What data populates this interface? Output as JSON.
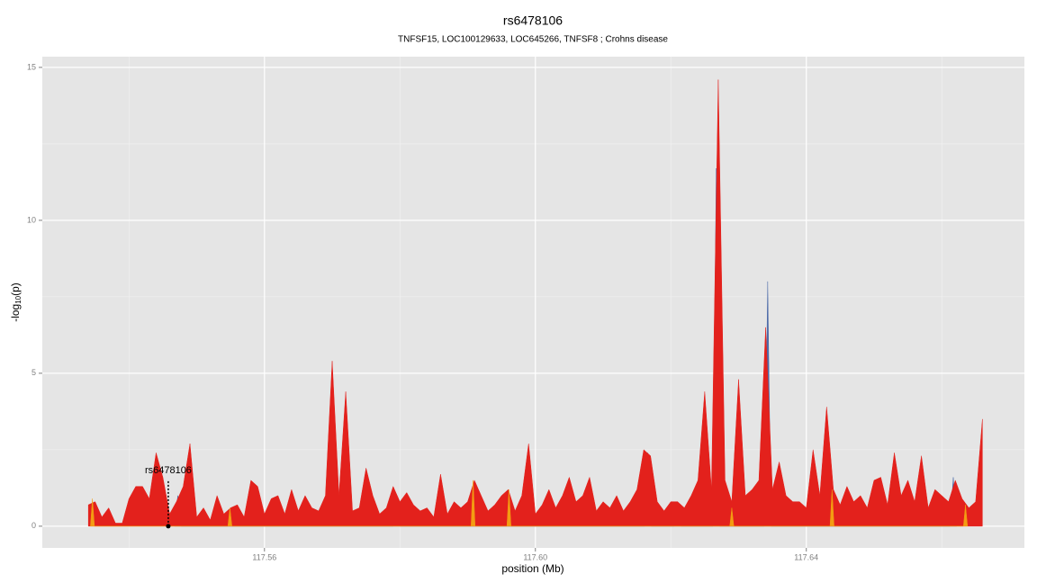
{
  "chart_data": {
    "type": "area",
    "title": "rs6478106",
    "subtitle": "TNFSF15, LOC100129633, LOC645266, TNFSF8 ; Crohns disease",
    "x_label": "position (Mb)",
    "y_label": {
      "main": "-log",
      "sub": "10",
      "tail": "(p)"
    },
    "xlim": [
      117.5272,
      117.6722
    ],
    "ylim": [
      -0.71,
      15.35
    ],
    "xticks": [
      117.56,
      {
        "value": 117.6,
        "label": "117.60"
      },
      117.64
    ],
    "yticks": [
      0,
      5,
      10,
      15
    ],
    "x_minor_grid": [
      117.54,
      117.58,
      117.62,
      117.66
    ],
    "y_minor_grid": [
      2.5,
      7.5,
      12.5
    ],
    "grid": true,
    "background": "#e5e5e5",
    "annotation": {
      "label": "rs6478106",
      "x": 117.5458,
      "y": 0
    },
    "series": [
      {
        "color": "#4c6aa8",
        "x": [
          117.5467,
          117.5472,
          117.5477,
          117.579,
          117.5795,
          117.58,
          117.6161,
          117.6166,
          117.6171,
          117.6205,
          117.621,
          117.6215,
          117.6262,
          117.6267,
          117.6272,
          117.6338,
          117.6343,
          117.6348,
          117.6612,
          117.6617,
          117.6622
        ],
        "values": [
          0,
          1.0,
          0,
          0,
          0.6,
          0,
          0,
          2.4,
          0,
          0,
          0.8,
          0,
          0,
          11.7,
          0,
          0,
          8.0,
          0,
          0,
          1.6,
          0
        ]
      },
      {
        "color": "#e3211c",
        "x": [
          117.534,
          117.535,
          117.536,
          117.537,
          117.538,
          117.539,
          117.54,
          117.541,
          117.542,
          117.543,
          117.544,
          117.545,
          117.546,
          117.547,
          117.548,
          117.549,
          117.55,
          117.551,
          117.552,
          117.553,
          117.554,
          117.555,
          117.556,
          117.557,
          117.558,
          117.559,
          117.56,
          117.561,
          117.562,
          117.563,
          117.564,
          117.565,
          117.566,
          117.567,
          117.568,
          117.569,
          117.57,
          117.571,
          117.572,
          117.573,
          117.574,
          117.575,
          117.576,
          117.577,
          117.578,
          117.579,
          117.58,
          117.581,
          117.582,
          117.583,
          117.584,
          117.585,
          117.586,
          117.587,
          117.588,
          117.589,
          117.59,
          117.591,
          117.592,
          117.593,
          117.594,
          117.595,
          117.596,
          117.597,
          117.598,
          117.599,
          117.6,
          117.601,
          117.602,
          117.603,
          117.604,
          117.605,
          117.606,
          117.607,
          117.608,
          117.609,
          117.61,
          117.611,
          117.612,
          117.613,
          117.614,
          117.615,
          117.616,
          117.617,
          117.618,
          117.619,
          117.62,
          117.621,
          117.622,
          117.623,
          117.624,
          117.625,
          117.626,
          117.627,
          117.628,
          117.629,
          117.63,
          117.631,
          117.632,
          117.633,
          117.634,
          117.635,
          117.636,
          117.637,
          117.638,
          117.639,
          117.64,
          117.641,
          117.642,
          117.643,
          117.644,
          117.645,
          117.646,
          117.647,
          117.648,
          117.649,
          117.65,
          117.651,
          117.652,
          117.653,
          117.654,
          117.655,
          117.656,
          117.657,
          117.658,
          117.659,
          117.66,
          117.661,
          117.662,
          117.663,
          117.664,
          117.665,
          117.666
        ],
        "values": [
          0.7,
          0.8,
          0.3,
          0.6,
          0.1,
          0.1,
          0.9,
          1.3,
          1.3,
          0.9,
          2.4,
          1.6,
          0.4,
          0.8,
          1.3,
          2.7,
          0.3,
          0.6,
          0.2,
          1.0,
          0.4,
          0.6,
          0.7,
          0.3,
          1.5,
          1.3,
          0.4,
          0.9,
          1.0,
          0.4,
          1.2,
          0.5,
          1.0,
          0.6,
          0.5,
          1.0,
          5.4,
          1.0,
          4.4,
          0.5,
          0.6,
          1.9,
          1.0,
          0.4,
          0.6,
          1.3,
          0.8,
          1.1,
          0.7,
          0.5,
          0.6,
          0.3,
          1.7,
          0.4,
          0.8,
          0.6,
          0.8,
          1.5,
          1.0,
          0.5,
          0.7,
          1.0,
          1.2,
          0.5,
          1.0,
          2.7,
          0.4,
          0.7,
          1.2,
          0.6,
          1.0,
          1.6,
          0.8,
          1.0,
          1.6,
          0.5,
          0.8,
          0.6,
          1.0,
          0.5,
          0.8,
          1.2,
          2.5,
          2.3,
          0.8,
          0.5,
          0.8,
          0.8,
          0.6,
          1.0,
          1.5,
          4.4,
          1.2,
          14.6,
          1.5,
          0.8,
          4.8,
          1.0,
          1.2,
          1.5,
          6.5,
          1.2,
          2.1,
          1.0,
          0.8,
          0.8,
          0.6,
          2.5,
          1.0,
          3.9,
          1.2,
          0.7,
          1.3,
          0.8,
          1.0,
          0.6,
          1.5,
          1.6,
          0.7,
          2.4,
          1.0,
          1.5,
          0.8,
          2.3,
          0.6,
          1.2,
          1.0,
          0.8,
          1.5,
          0.9,
          0.6,
          0.8,
          3.5
        ]
      },
      {
        "color": "#f39c12",
        "x": [
          117.5343,
          117.5346,
          117.5349,
          117.5546,
          117.5549,
          117.5552,
          117.5905,
          117.5908,
          117.5911,
          117.5958,
          117.5961,
          117.5964,
          117.6287,
          117.629,
          117.6293,
          117.6435,
          117.6438,
          117.6441,
          117.6632,
          117.6635,
          117.6638
        ],
        "values": [
          0,
          0.9,
          0,
          0,
          0.6,
          0,
          0,
          1.5,
          0,
          0,
          1.2,
          0,
          0,
          0.6,
          0,
          0,
          1.2,
          0,
          0,
          0.7,
          0
        ]
      }
    ]
  }
}
